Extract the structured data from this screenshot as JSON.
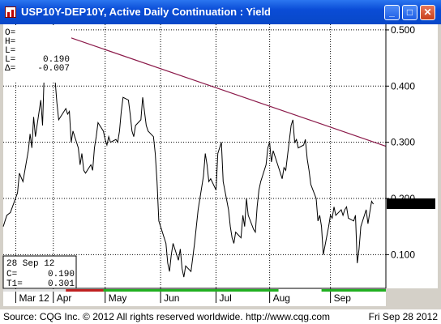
{
  "window": {
    "title": "USP10Y-DEP10Y, Active Daily Continuation : Yield",
    "controls": {
      "minimize": "_",
      "maximize": "□",
      "close": "✕"
    }
  },
  "info_panel": {
    "top_labels": [
      "O=",
      "H=",
      "L=",
      "L=",
      "Δ="
    ],
    "top_values": [
      "",
      "",
      "",
      "0.190",
      "-0.007"
    ],
    "bottom_date": "28  Sep  12",
    "bottom_labels": [
      "C=",
      "T1="
    ],
    "bottom_values": [
      "0.190",
      "0.301"
    ]
  },
  "footer": {
    "source": "Source: CQG Inc. © 2012 All rights reserved worldwide. http://www.cqg.com",
    "date": "Fri Sep 28 2012"
  },
  "colors": {
    "trendline": "#8b1a4a",
    "price_line": "#000000",
    "grid": "#000000",
    "last_value_bg": "#000000",
    "last_value_fg": "#ffffff",
    "session_bar": [
      "#e0e0e0",
      "#c02020",
      "#20b020",
      "#ffffff",
      "#20b020"
    ]
  },
  "chart_data": {
    "type": "line",
    "title": "USP10Y-DEP10Y, Active Daily Continuation : Yield",
    "y_axis_side": "right",
    "ylim": [
      0.04,
      0.51
    ],
    "y_ticks": [
      0.1,
      0.2,
      0.3,
      0.4,
      0.5
    ],
    "y_tick_labels": [
      "0.100",
      "0.200",
      "0.300",
      "0.400",
      "0.500"
    ],
    "x_start": "2012-03-05",
    "x_end": "2012-10-05",
    "month_ticks": [
      {
        "date": "2012-03-12",
        "label": "Mar 12"
      },
      {
        "date": "2012-04-02",
        "label": "Apr"
      },
      {
        "date": "2012-05-01",
        "label": "May"
      },
      {
        "date": "2012-06-01",
        "label": "Jun"
      },
      {
        "date": "2012-07-02",
        "label": "Jul"
      },
      {
        "date": "2012-08-01",
        "label": "Aug"
      },
      {
        "date": "2012-09-04",
        "label": "Sep"
      }
    ],
    "grid": true,
    "last_value": 0.19,
    "last_value_label": "0.190",
    "series": [
      {
        "type": "line",
        "points": [
          [
            "2012-03-05",
            0.15
          ],
          [
            "2012-03-07",
            0.17
          ],
          [
            "2012-03-09",
            0.175
          ],
          [
            "2012-03-13",
            0.21
          ],
          [
            "2012-03-14",
            0.245
          ],
          [
            "2012-03-16",
            0.23
          ],
          [
            "2012-03-19",
            0.285
          ],
          [
            "2012-03-20",
            0.315
          ],
          [
            "2012-03-21",
            0.29
          ],
          [
            "2012-03-22",
            0.345
          ],
          [
            "2012-03-23",
            0.31
          ],
          [
            "2012-03-26",
            0.375
          ],
          [
            "2012-03-27",
            0.33
          ],
          [
            "2012-03-28",
            0.43
          ],
          [
            "2012-03-29",
            0.42
          ],
          [
            "2012-03-30",
            0.49
          ],
          [
            "2012-04-02",
            0.46
          ],
          [
            "2012-04-03",
            0.41
          ],
          [
            "2012-04-04",
            0.37
          ],
          [
            "2012-04-05",
            0.34
          ],
          [
            "2012-04-09",
            0.36
          ],
          [
            "2012-04-10",
            0.35
          ],
          [
            "2012-04-11",
            0.355
          ],
          [
            "2012-04-12",
            0.3
          ],
          [
            "2012-04-13",
            0.32
          ],
          [
            "2012-04-16",
            0.29
          ],
          [
            "2012-04-17",
            0.26
          ],
          [
            "2012-04-18",
            0.28
          ],
          [
            "2012-04-19",
            0.25
          ],
          [
            "2012-04-20",
            0.245
          ],
          [
            "2012-04-23",
            0.26
          ],
          [
            "2012-04-24",
            0.25
          ],
          [
            "2012-04-25",
            0.29
          ],
          [
            "2012-04-26",
            0.31
          ],
          [
            "2012-04-27",
            0.335
          ],
          [
            "2012-04-30",
            0.32
          ],
          [
            "2012-05-01",
            0.305
          ],
          [
            "2012-05-02",
            0.295
          ],
          [
            "2012-05-03",
            0.31
          ],
          [
            "2012-05-04",
            0.3
          ],
          [
            "2012-05-07",
            0.305
          ],
          [
            "2012-05-08",
            0.3
          ],
          [
            "2012-05-09",
            0.32
          ],
          [
            "2012-05-10",
            0.355
          ],
          [
            "2012-05-11",
            0.38
          ],
          [
            "2012-05-14",
            0.375
          ],
          [
            "2012-05-15",
            0.35
          ],
          [
            "2012-05-16",
            0.32
          ],
          [
            "2012-05-17",
            0.31
          ],
          [
            "2012-05-18",
            0.33
          ],
          [
            "2012-05-21",
            0.34
          ],
          [
            "2012-05-22",
            0.38
          ],
          [
            "2012-05-23",
            0.355
          ],
          [
            "2012-05-24",
            0.33
          ],
          [
            "2012-05-25",
            0.32
          ],
          [
            "2012-05-28",
            0.31
          ],
          [
            "2012-05-29",
            0.28
          ],
          [
            "2012-05-30",
            0.23
          ],
          [
            "2012-05-31",
            0.16
          ],
          [
            "2012-06-01",
            0.15
          ],
          [
            "2012-06-04",
            0.12
          ],
          [
            "2012-06-05",
            0.085
          ],
          [
            "2012-06-06",
            0.07
          ],
          [
            "2012-06-07",
            0.1
          ],
          [
            "2012-06-08",
            0.12
          ],
          [
            "2012-06-11",
            0.09
          ],
          [
            "2012-06-12",
            0.11
          ],
          [
            "2012-06-13",
            0.075
          ],
          [
            "2012-06-14",
            0.06
          ],
          [
            "2012-06-15",
            0.08
          ],
          [
            "2012-06-18",
            0.07
          ],
          [
            "2012-06-19",
            0.095
          ],
          [
            "2012-06-20",
            0.12
          ],
          [
            "2012-06-21",
            0.15
          ],
          [
            "2012-06-22",
            0.18
          ],
          [
            "2012-06-25",
            0.24
          ],
          [
            "2012-06-26",
            0.28
          ],
          [
            "2012-06-27",
            0.26
          ],
          [
            "2012-06-28",
            0.23
          ],
          [
            "2012-06-29",
            0.235
          ],
          [
            "2012-07-02",
            0.215
          ],
          [
            "2012-07-03",
            0.28
          ],
          [
            "2012-07-05",
            0.3
          ],
          [
            "2012-07-06",
            0.23
          ],
          [
            "2012-07-09",
            0.18
          ],
          [
            "2012-07-10",
            0.15
          ],
          [
            "2012-07-11",
            0.13
          ],
          [
            "2012-07-12",
            0.12
          ],
          [
            "2012-07-13",
            0.14
          ],
          [
            "2012-07-16",
            0.13
          ],
          [
            "2012-07-17",
            0.17
          ],
          [
            "2012-07-18",
            0.15
          ],
          [
            "2012-07-19",
            0.2
          ],
          [
            "2012-07-20",
            0.17
          ],
          [
            "2012-07-23",
            0.145
          ],
          [
            "2012-07-24",
            0.14
          ],
          [
            "2012-07-25",
            0.185
          ],
          [
            "2012-07-26",
            0.215
          ],
          [
            "2012-07-27",
            0.23
          ],
          [
            "2012-07-30",
            0.26
          ],
          [
            "2012-07-31",
            0.29
          ],
          [
            "2012-08-01",
            0.3
          ],
          [
            "2012-08-02",
            0.265
          ],
          [
            "2012-08-03",
            0.285
          ],
          [
            "2012-08-06",
            0.255
          ],
          [
            "2012-08-07",
            0.245
          ],
          [
            "2012-08-08",
            0.235
          ],
          [
            "2012-08-09",
            0.255
          ],
          [
            "2012-08-10",
            0.25
          ],
          [
            "2012-08-13",
            0.33
          ],
          [
            "2012-08-14",
            0.34
          ],
          [
            "2012-08-15",
            0.3
          ],
          [
            "2012-08-16",
            0.305
          ],
          [
            "2012-08-17",
            0.29
          ],
          [
            "2012-08-20",
            0.295
          ],
          [
            "2012-08-21",
            0.305
          ],
          [
            "2012-08-22",
            0.27
          ],
          [
            "2012-08-23",
            0.25
          ],
          [
            "2012-08-24",
            0.225
          ],
          [
            "2012-08-27",
            0.2
          ],
          [
            "2012-08-28",
            0.16
          ],
          [
            "2012-08-29",
            0.17
          ],
          [
            "2012-08-30",
            0.15
          ],
          [
            "2012-08-31",
            0.1
          ],
          [
            "2012-09-03",
            0.15
          ],
          [
            "2012-09-04",
            0.17
          ],
          [
            "2012-09-05",
            0.165
          ],
          [
            "2012-09-06",
            0.185
          ],
          [
            "2012-09-07",
            0.17
          ],
          [
            "2012-09-10",
            0.18
          ],
          [
            "2012-09-11",
            0.17
          ],
          [
            "2012-09-12",
            0.18
          ],
          [
            "2012-09-13",
            0.185
          ],
          [
            "2012-09-14",
            0.165
          ],
          [
            "2012-09-17",
            0.16
          ],
          [
            "2012-09-18",
            0.17
          ],
          [
            "2012-09-19",
            0.085
          ],
          [
            "2012-09-20",
            0.11
          ],
          [
            "2012-09-21",
            0.15
          ],
          [
            "2012-09-24",
            0.18
          ],
          [
            "2012-09-25",
            0.155
          ],
          [
            "2012-09-26",
            0.175
          ],
          [
            "2012-09-27",
            0.195
          ],
          [
            "2012-09-28",
            0.19
          ]
        ]
      },
      {
        "type": "trendline",
        "points": [
          [
            "2012-03-30",
            0.5
          ],
          [
            "2012-10-05",
            0.293
          ]
        ]
      }
    ]
  }
}
